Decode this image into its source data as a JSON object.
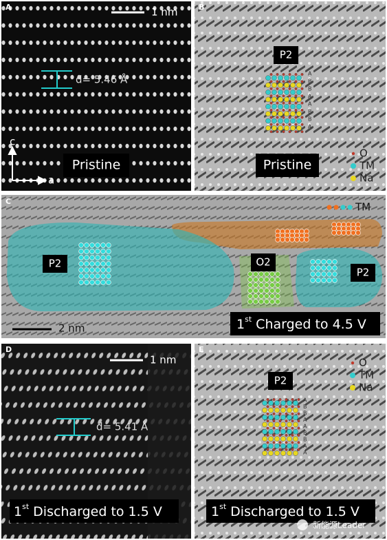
{
  "panels": {
    "a": {
      "label": "A",
      "scale": "1 nm",
      "spacing": "d= 5.46 Å",
      "axis_c": "c",
      "axis_a": "a",
      "caption": "Pristine"
    },
    "b": {
      "label": "B",
      "phase": "P2",
      "stack": [
        "A",
        "B",
        "B",
        "A",
        "A",
        "B",
        "B",
        "A"
      ],
      "legend": [
        "O",
        "TM",
        "Na"
      ],
      "caption": "Pristine"
    },
    "c": {
      "label": "C",
      "legend": "TM",
      "phase_left": "P2",
      "phase_mid": "O2",
      "phase_right": "P2",
      "scale": "2 nm",
      "caption": {
        "ordinal": "1",
        "suffix": "st",
        "rest": " Charged to 4.5 V"
      }
    },
    "d": {
      "label": "D",
      "scale": "1 nm",
      "spacing": "d= 5.41 Å",
      "caption": {
        "ordinal": "1",
        "suffix": "st",
        "rest": " Discharged to 1.5 V"
      }
    },
    "e": {
      "label": "E",
      "phase": "P2",
      "stack": [
        "A",
        "B",
        "B",
        "A",
        "A",
        "B",
        "B",
        "A",
        "A"
      ],
      "legend": [
        "O",
        "TM",
        "Na"
      ],
      "caption": {
        "ordinal": "1",
        "suffix": "st",
        "rest": " Discharged to 1.5 V"
      }
    }
  },
  "watermark": "新能源Leader"
}
